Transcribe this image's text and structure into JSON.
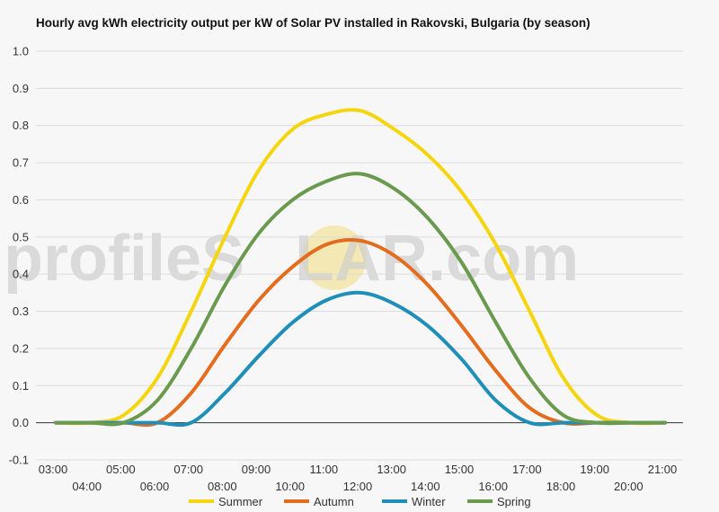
{
  "chart_data": {
    "type": "line",
    "title": "Hourly avg kWh electricity output per kW of Solar PV installed in Rakovski, Bulgaria (by season)",
    "watermark": {
      "prefix": "profile",
      "mid": "S",
      "sun": "O",
      "suffix": "LAR.com"
    },
    "xlabel": "",
    "ylabel": "",
    "x": [
      "03:00",
      "04:00",
      "05:00",
      "06:00",
      "07:00",
      "08:00",
      "09:00",
      "10:00",
      "11:00",
      "12:00",
      "13:00",
      "14:00",
      "15:00",
      "16:00",
      "17:00",
      "18:00",
      "19:00",
      "20:00",
      "21:00"
    ],
    "ylim": [
      -0.1,
      1.0
    ],
    "yticks": [
      "-0.1",
      "0.0",
      "0.1",
      "0.2",
      "0.3",
      "0.4",
      "0.5",
      "0.6",
      "0.7",
      "0.8",
      "0.9",
      "1.0"
    ],
    "legend_position": "bottom",
    "grid": true,
    "series": [
      {
        "name": "Summer",
        "color": "#f5d60e",
        "values": [
          0,
          0,
          0.02,
          0.12,
          0.3,
          0.5,
          0.68,
          0.79,
          0.83,
          0.84,
          0.79,
          0.72,
          0.62,
          0.48,
          0.3,
          0.12,
          0.02,
          0,
          0
        ]
      },
      {
        "name": "Autumn",
        "color": "#e36c1f",
        "values": [
          0,
          0,
          0,
          0,
          0.08,
          0.21,
          0.33,
          0.42,
          0.48,
          0.49,
          0.45,
          0.37,
          0.26,
          0.14,
          0.04,
          0,
          0,
          0,
          0
        ]
      },
      {
        "name": "Winter",
        "color": "#1f8fb8",
        "values": [
          0,
          0,
          0,
          0,
          0,
          0.08,
          0.18,
          0.27,
          0.33,
          0.35,
          0.32,
          0.26,
          0.17,
          0.06,
          0,
          0,
          0,
          0,
          0
        ]
      },
      {
        "name": "Spring",
        "color": "#6a9a4e",
        "values": [
          0,
          0,
          0,
          0.06,
          0.2,
          0.37,
          0.51,
          0.6,
          0.65,
          0.67,
          0.63,
          0.55,
          0.43,
          0.27,
          0.12,
          0.02,
          0,
          0,
          0
        ]
      }
    ]
  }
}
